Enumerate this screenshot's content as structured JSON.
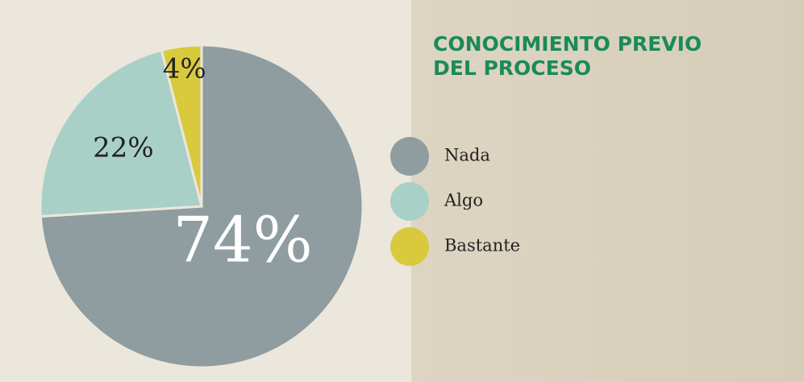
{
  "chart_data": {
    "type": "pie",
    "title": "CONOCIMIENTO PREVIO DEL PROCESO",
    "categories": [
      "Nada",
      "Algo",
      "Bastante"
    ],
    "values": [
      74,
      22,
      4
    ],
    "value_labels": [
      "74%",
      "22%",
      "4%"
    ],
    "colors": [
      "#8f9ca0",
      "#a9d0c7",
      "#d9c93c"
    ]
  }
}
